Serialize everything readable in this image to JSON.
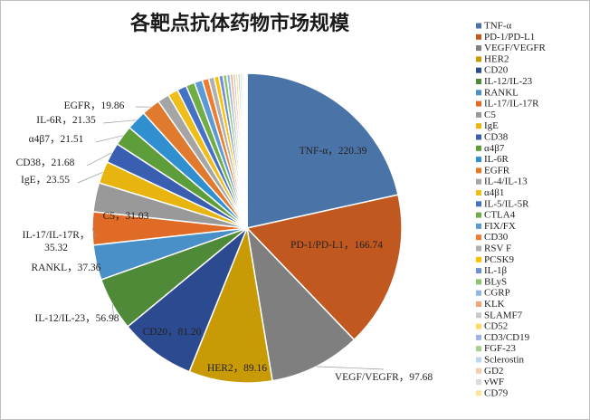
{
  "chart_data": {
    "type": "pie",
    "title": "各靶点抗体药物市场规模",
    "legend_position": "right",
    "slices": [
      {
        "name": "TNF-α",
        "value": 220.39,
        "color": "#4a74a8",
        "label": "TNF-α，220.39"
      },
      {
        "name": "PD-1/PD-L1",
        "value": 166.74,
        "color": "#c0581f",
        "label": "PD-1/PD-L1，166.74"
      },
      {
        "name": "VEGF/VEGFR",
        "value": 97.68,
        "color": "#7f7f7f",
        "label": "VEGF/VEGFR，97.68"
      },
      {
        "name": "HER2",
        "value": 89.16,
        "color": "#c89a05",
        "label": "HER2，89.16"
      },
      {
        "name": "CD20",
        "value": 81.2,
        "color": "#2c4a8f",
        "label": "CD20，81.20"
      },
      {
        "name": "IL-12/IL-23",
        "value": 56.98,
        "color": "#4e8a37",
        "label": "IL-12/IL-23，56.98"
      },
      {
        "name": "RANKL",
        "value": 37.36,
        "color": "#4a90c8",
        "label": "RANKL，37.36"
      },
      {
        "name": "IL-17/IL-17R",
        "value": 35.32,
        "color": "#e06b26",
        "label": "IL-17/IL-17R，35.32"
      },
      {
        "name": "C5",
        "value": 31.03,
        "color": "#999999",
        "label": "C5，31.03"
      },
      {
        "name": "IgE",
        "value": 23.55,
        "color": "#e8b40f",
        "label": "IgE，23.55"
      },
      {
        "name": "CD38",
        "value": 21.68,
        "color": "#3a5fb0",
        "label": "CD38，21.68"
      },
      {
        "name": "α4β7",
        "value": 21.51,
        "color": "#5e9e3a",
        "label": "α4β7，21.51"
      },
      {
        "name": "IL-6R",
        "value": 21.35,
        "color": "#2f8fcf",
        "label": "IL-6R，21.35"
      },
      {
        "name": "EGFR",
        "value": 19.86,
        "color": "#e07a2e",
        "label": "EGFR，19.86"
      },
      {
        "name": "IL-4/IL-13",
        "value": 12.5,
        "color": "#a5a5a5",
        "label": ""
      },
      {
        "name": "α4β1",
        "value": 11.0,
        "color": "#f0be1a",
        "label": ""
      },
      {
        "name": "IL-5/IL-5R",
        "value": 10.0,
        "color": "#4472c4",
        "label": ""
      },
      {
        "name": "CTLA4",
        "value": 9.5,
        "color": "#70ad47",
        "label": ""
      },
      {
        "name": "FIX/FX",
        "value": 8.5,
        "color": "#5b9bd5",
        "label": ""
      },
      {
        "name": "CD30",
        "value": 7.0,
        "color": "#ed7d31",
        "label": ""
      },
      {
        "name": "RSV F",
        "value": 6.0,
        "color": "#b0b0b0",
        "label": ""
      },
      {
        "name": "PCSK9",
        "value": 5.0,
        "color": "#ffc000",
        "label": ""
      },
      {
        "name": "IL-1β",
        "value": 4.5,
        "color": "#6f8fd0",
        "label": ""
      },
      {
        "name": "BLyS",
        "value": 4.0,
        "color": "#8fc36b",
        "label": ""
      },
      {
        "name": "CGRP",
        "value": 3.5,
        "color": "#8db6e0",
        "label": ""
      },
      {
        "name": "KLK",
        "value": 3.0,
        "color": "#f4a577",
        "label": ""
      },
      {
        "name": "SLAMF7",
        "value": 2.8,
        "color": "#c9c9c9",
        "label": ""
      },
      {
        "name": "CD52",
        "value": 2.5,
        "color": "#ffd966",
        "label": ""
      },
      {
        "name": "CD3/CD19",
        "value": 2.2,
        "color": "#9db4e3",
        "label": ""
      },
      {
        "name": "FGF-23",
        "value": 2.0,
        "color": "#a9d18e",
        "label": ""
      },
      {
        "name": "Sclerostin",
        "value": 1.8,
        "color": "#bdd7ee",
        "label": ""
      },
      {
        "name": "GD2",
        "value": 1.5,
        "color": "#f8cbad",
        "label": ""
      },
      {
        "name": "vWF",
        "value": 1.2,
        "color": "#dbdbdb",
        "label": ""
      },
      {
        "name": "CD79",
        "value": 1.0,
        "color": "#fee599",
        "label": ""
      }
    ]
  }
}
